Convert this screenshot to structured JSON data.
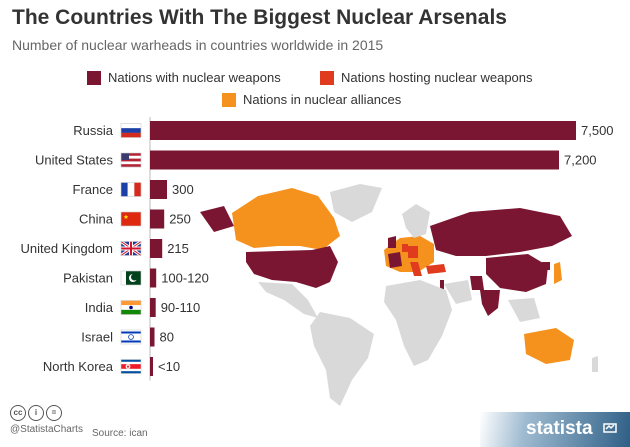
{
  "title": "The Countries With The Biggest Nuclear Arsenals",
  "subtitle": "Number of nuclear warheads in countries worldwide in 2015",
  "legend": [
    {
      "label": "Nations with nuclear weapons",
      "color": "#7a1631"
    },
    {
      "label": "Nations hosting nuclear weapons",
      "color": "#e03b1e"
    },
    {
      "label": "Nations in nuclear alliances",
      "color": "#f5921e"
    }
  ],
  "colors": {
    "bar": "#7a1631",
    "nuclear": "#7a1631",
    "hosting": "#e03b1e",
    "alliance": "#f5921e",
    "other": "#d9d9d9"
  },
  "chart_data": {
    "type": "bar",
    "orientation": "horizontal",
    "categories": [
      "Russia",
      "United States",
      "France",
      "China",
      "United Kingdom",
      "Pakistan",
      "India",
      "Israel",
      "North Korea"
    ],
    "values": [
      7500,
      7200,
      300,
      250,
      215,
      110,
      100,
      80,
      10
    ],
    "value_labels": [
      "7,500",
      "7,200",
      "300",
      "250",
      "215",
      "100-120",
      "90-110",
      "80",
      "<10"
    ],
    "flags": [
      "russia-flag-icon",
      "usa-flag-icon",
      "france-flag-icon",
      "china-flag-icon",
      "uk-flag-icon",
      "pakistan-flag-icon",
      "india-flag-icon",
      "israel-flag-icon",
      "north-korea-flag-icon"
    ],
    "xlim": [
      0,
      7500
    ]
  },
  "footer": {
    "handle": "@StatistaCharts",
    "source": "Source: ican",
    "brand": "statista"
  }
}
